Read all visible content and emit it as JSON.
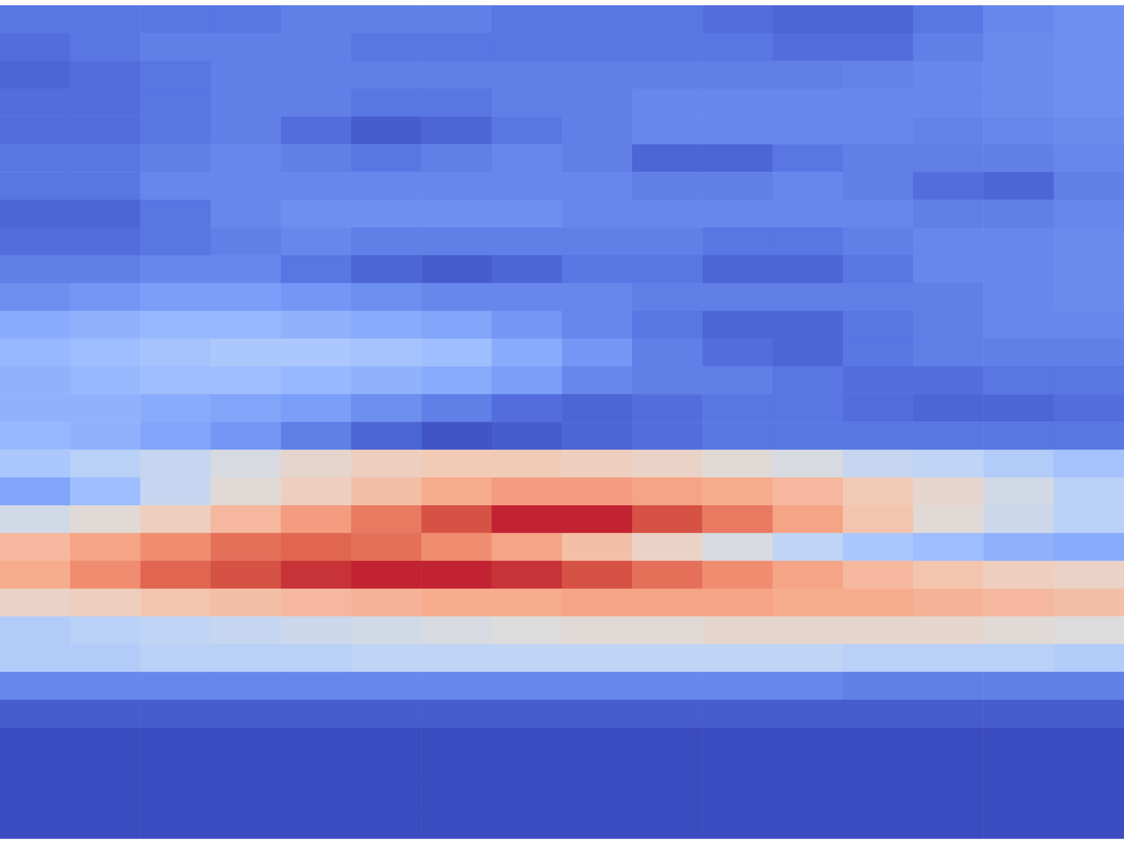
{
  "chart_data": {
    "type": "heatmap",
    "tick_labels": false,
    "zlim": [
      0,
      1
    ],
    "cells": [
      [
        0.1,
        0.1,
        0.1,
        0.1,
        0.12,
        0.12,
        0.12,
        0.1,
        0.1,
        0.1,
        0.08,
        0.06,
        0.06,
        0.1,
        0.14,
        0.16
      ],
      [
        0.08,
        0.1,
        0.12,
        0.12,
        0.12,
        0.1,
        0.1,
        0.1,
        0.1,
        0.1,
        0.1,
        0.08,
        0.08,
        0.12,
        0.15,
        0.16
      ],
      [
        0.06,
        0.08,
        0.1,
        0.12,
        0.12,
        0.12,
        0.12,
        0.12,
        0.12,
        0.12,
        0.12,
        0.12,
        0.13,
        0.14,
        0.15,
        0.16
      ],
      [
        0.08,
        0.08,
        0.1,
        0.12,
        0.12,
        0.1,
        0.1,
        0.12,
        0.12,
        0.14,
        0.14,
        0.14,
        0.14,
        0.14,
        0.15,
        0.16
      ],
      [
        0.08,
        0.08,
        0.1,
        0.12,
        0.08,
        0.04,
        0.06,
        0.1,
        0.12,
        0.14,
        0.14,
        0.14,
        0.14,
        0.13,
        0.14,
        0.15
      ],
      [
        0.1,
        0.1,
        0.12,
        0.14,
        0.12,
        0.1,
        0.12,
        0.14,
        0.12,
        0.06,
        0.06,
        0.1,
        0.12,
        0.12,
        0.12,
        0.14
      ],
      [
        0.1,
        0.1,
        0.14,
        0.14,
        0.14,
        0.14,
        0.14,
        0.14,
        0.14,
        0.12,
        0.12,
        0.14,
        0.12,
        0.08,
        0.06,
        0.12
      ],
      [
        0.06,
        0.06,
        0.1,
        0.14,
        0.16,
        0.16,
        0.16,
        0.16,
        0.14,
        0.14,
        0.14,
        0.14,
        0.14,
        0.12,
        0.12,
        0.14
      ],
      [
        0.08,
        0.08,
        0.1,
        0.12,
        0.14,
        0.12,
        0.12,
        0.12,
        0.12,
        0.12,
        0.1,
        0.1,
        0.12,
        0.14,
        0.14,
        0.15
      ],
      [
        0.12,
        0.12,
        0.14,
        0.14,
        0.1,
        0.06,
        0.04,
        0.06,
        0.1,
        0.1,
        0.06,
        0.06,
        0.1,
        0.14,
        0.14,
        0.15
      ],
      [
        0.16,
        0.18,
        0.2,
        0.2,
        0.18,
        0.16,
        0.14,
        0.14,
        0.14,
        0.12,
        0.12,
        0.12,
        0.12,
        0.12,
        0.14,
        0.15
      ],
      [
        0.24,
        0.26,
        0.28,
        0.28,
        0.26,
        0.24,
        0.22,
        0.18,
        0.14,
        0.1,
        0.06,
        0.06,
        0.1,
        0.12,
        0.14,
        0.14
      ],
      [
        0.28,
        0.3,
        0.32,
        0.34,
        0.34,
        0.32,
        0.3,
        0.24,
        0.18,
        0.12,
        0.08,
        0.06,
        0.1,
        0.12,
        0.12,
        0.12
      ],
      [
        0.26,
        0.28,
        0.3,
        0.3,
        0.28,
        0.26,
        0.24,
        0.2,
        0.14,
        0.12,
        0.12,
        0.1,
        0.08,
        0.08,
        0.1,
        0.1
      ],
      [
        0.26,
        0.26,
        0.24,
        0.22,
        0.2,
        0.16,
        0.12,
        0.08,
        0.06,
        0.08,
        0.1,
        0.1,
        0.08,
        0.06,
        0.06,
        0.08
      ],
      [
        0.28,
        0.26,
        0.22,
        0.18,
        0.12,
        0.06,
        0.02,
        0.04,
        0.06,
        0.08,
        0.1,
        0.1,
        0.1,
        0.1,
        0.1,
        0.1
      ],
      [
        0.34,
        0.38,
        0.42,
        0.48,
        0.54,
        0.58,
        0.6,
        0.6,
        0.58,
        0.56,
        0.52,
        0.48,
        0.42,
        0.4,
        0.36,
        0.32
      ],
      [
        0.22,
        0.3,
        0.42,
        0.52,
        0.58,
        0.64,
        0.7,
        0.74,
        0.74,
        0.72,
        0.7,
        0.66,
        0.6,
        0.54,
        0.46,
        0.38
      ],
      [
        0.46,
        0.52,
        0.58,
        0.66,
        0.74,
        0.82,
        0.9,
        0.96,
        0.96,
        0.9,
        0.82,
        0.72,
        0.62,
        0.52,
        0.44,
        0.38
      ],
      [
        0.66,
        0.72,
        0.78,
        0.84,
        0.86,
        0.84,
        0.78,
        0.72,
        0.64,
        0.56,
        0.48,
        0.4,
        0.34,
        0.3,
        0.26,
        0.24
      ],
      [
        0.7,
        0.78,
        0.86,
        0.9,
        0.94,
        0.96,
        0.96,
        0.94,
        0.9,
        0.84,
        0.78,
        0.72,
        0.66,
        0.62,
        0.58,
        0.56
      ],
      [
        0.56,
        0.58,
        0.62,
        0.64,
        0.66,
        0.68,
        0.7,
        0.7,
        0.72,
        0.72,
        0.72,
        0.7,
        0.7,
        0.68,
        0.66,
        0.64
      ],
      [
        0.36,
        0.38,
        0.4,
        0.42,
        0.44,
        0.46,
        0.48,
        0.5,
        0.52,
        0.52,
        0.54,
        0.54,
        0.54,
        0.54,
        0.52,
        0.5
      ],
      [
        0.36,
        0.36,
        0.38,
        0.38,
        0.38,
        0.4,
        0.4,
        0.4,
        0.4,
        0.4,
        0.4,
        0.4,
        0.38,
        0.38,
        0.38,
        0.36
      ],
      [
        0.14,
        0.14,
        0.14,
        0.14,
        0.14,
        0.14,
        0.14,
        0.14,
        0.14,
        0.14,
        0.14,
        0.14,
        0.12,
        0.12,
        0.12,
        0.12
      ],
      [
        0.04,
        0.04,
        0.04,
        0.04,
        0.04,
        0.04,
        0.04,
        0.04,
        0.04,
        0.04,
        0.04,
        0.04,
        0.04,
        0.04,
        0.04,
        0.04
      ],
      [
        0,
        0,
        0,
        0,
        0,
        0,
        0,
        0,
        0,
        0,
        0,
        0,
        0,
        0,
        0,
        0
      ],
      [
        0,
        0,
        0,
        0,
        0,
        0,
        0,
        0,
        0,
        0,
        0,
        0,
        0,
        0,
        0,
        0
      ],
      [
        0,
        0,
        0,
        0,
        0,
        0,
        0,
        0,
        0,
        0,
        0,
        0,
        0,
        0,
        0,
        0
      ],
      [
        0,
        0,
        0,
        0,
        0,
        0,
        0,
        0,
        0,
        0,
        0,
        0,
        0,
        0,
        0,
        0
      ]
    ]
  }
}
